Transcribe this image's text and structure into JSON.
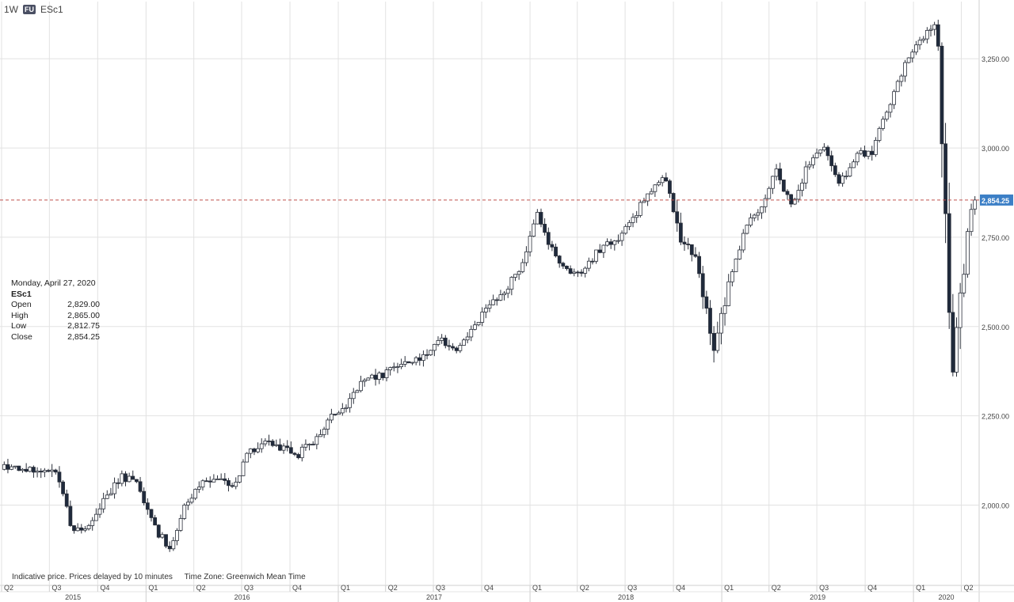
{
  "header": {
    "interval": "1W",
    "badge": "FU",
    "symbol": "ESc1"
  },
  "info": {
    "date": "Monday, April 27, 2020",
    "symbol": "ESc1",
    "rows": [
      {
        "label": "Open",
        "value": "2,829.00"
      },
      {
        "label": "High",
        "value": "2,865.00"
      },
      {
        "label": "Low",
        "value": "2,812.75"
      },
      {
        "label": "Close",
        "value": "2,854.25"
      }
    ]
  },
  "footer": {
    "note": "Indicative price. Prices delayed by 10 minutes",
    "tz": "Time Zone: Greenwich Mean Time"
  },
  "colors": {
    "up": "#ffffff",
    "down": "#1f2a3c",
    "outline": "#2a2f3a",
    "grid": "#e2e2e2",
    "refline": "#c0504d",
    "lastbox": "#3c7fc6"
  },
  "chart_data": {
    "type": "candlestick",
    "interval": "weekly",
    "y_axis": {
      "ticks": [
        2000,
        2250,
        2500,
        2750,
        3000,
        3250
      ],
      "tick_labels": [
        "2,000.00",
        "2,250.00",
        "2,500.00",
        "2,750.00",
        "3,000.00",
        "3,250.00"
      ],
      "range": [
        1775,
        3410
      ],
      "position": "right"
    },
    "last_price": 2854.25,
    "last_price_label": "2,854.25",
    "x_axis": {
      "quarter_labels": [
        "Q2",
        "Q3",
        "Q4",
        "Q1",
        "Q2",
        "Q3",
        "Q4",
        "Q1",
        "Q2",
        "Q3",
        "Q4",
        "Q1",
        "Q2",
        "Q3",
        "Q4",
        "Q1",
        "Q2",
        "Q3",
        "Q4",
        "Q1",
        "Q2"
      ],
      "quarter_starts": [
        "2015-04",
        "2015-07",
        "2015-10",
        "2016-01",
        "2016-04",
        "2016-07",
        "2016-10",
        "2017-01",
        "2017-04",
        "2017-07",
        "2017-10",
        "2018-01",
        "2018-04",
        "2018-07",
        "2018-10",
        "2019-01",
        "2019-04",
        "2019-07",
        "2019-10",
        "2020-01",
        "2020-04"
      ],
      "year_labels": [
        "2015",
        "2016",
        "2017",
        "2018",
        "2019",
        "2020"
      ]
    },
    "grid": true,
    "anchors": [
      [
        "2015-05",
        2105
      ],
      [
        "2015-07",
        2090
      ],
      [
        "2015-08",
        1920
      ],
      [
        "2015-09",
        1950
      ],
      [
        "2015-10",
        2020
      ],
      [
        "2015-11",
        2080
      ],
      [
        "2015-12",
        2060
      ],
      [
        "2016-01",
        1940
      ],
      [
        "2016-02",
        1880
      ],
      [
        "2016-03",
        1995
      ],
      [
        "2016-04",
        2060
      ],
      [
        "2016-05",
        2070
      ],
      [
        "2016-06",
        2050
      ],
      [
        "2016-07",
        2150
      ],
      [
        "2016-08",
        2180
      ],
      [
        "2016-09",
        2160
      ],
      [
        "2016-10",
        2140
      ],
      [
        "2016-11",
        2180
      ],
      [
        "2016-12",
        2245
      ],
      [
        "2017-01",
        2270
      ],
      [
        "2017-02",
        2350
      ],
      [
        "2017-03",
        2355
      ],
      [
        "2017-04",
        2380
      ],
      [
        "2017-05",
        2400
      ],
      [
        "2017-06",
        2420
      ],
      [
        "2017-07",
        2460
      ],
      [
        "2017-08",
        2440
      ],
      [
        "2017-09",
        2500
      ],
      [
        "2017-10",
        2560
      ],
      [
        "2017-11",
        2600
      ],
      [
        "2017-12",
        2670
      ],
      [
        "2018-01",
        2820
      ],
      [
        "2018-02",
        2700
      ],
      [
        "2018-03",
        2650
      ],
      [
        "2018-04",
        2660
      ],
      [
        "2018-05",
        2720
      ],
      [
        "2018-06",
        2740
      ],
      [
        "2018-07",
        2800
      ],
      [
        "2018-08",
        2880
      ],
      [
        "2018-09",
        2920
      ],
      [
        "2018-10",
        2730
      ],
      [
        "2018-11",
        2700
      ],
      [
        "2018-12",
        2440
      ],
      [
        "2019-01",
        2620
      ],
      [
        "2019-02",
        2780
      ],
      [
        "2019-03",
        2820
      ],
      [
        "2019-04",
        2940
      ],
      [
        "2019-05",
        2830
      ],
      [
        "2019-06",
        2960
      ],
      [
        "2019-07",
        3010
      ],
      [
        "2019-08",
        2900
      ],
      [
        "2019-09",
        2980
      ],
      [
        "2019-10",
        2990
      ],
      [
        "2019-11",
        3120
      ],
      [
        "2019-12",
        3230
      ],
      [
        "2020-01",
        3300
      ],
      [
        "2020-02",
        3360
      ],
      [
        "2020-03",
        2400
      ],
      [
        "2020-04",
        2800
      ],
      [
        "2020-04-27",
        2854
      ]
    ]
  }
}
